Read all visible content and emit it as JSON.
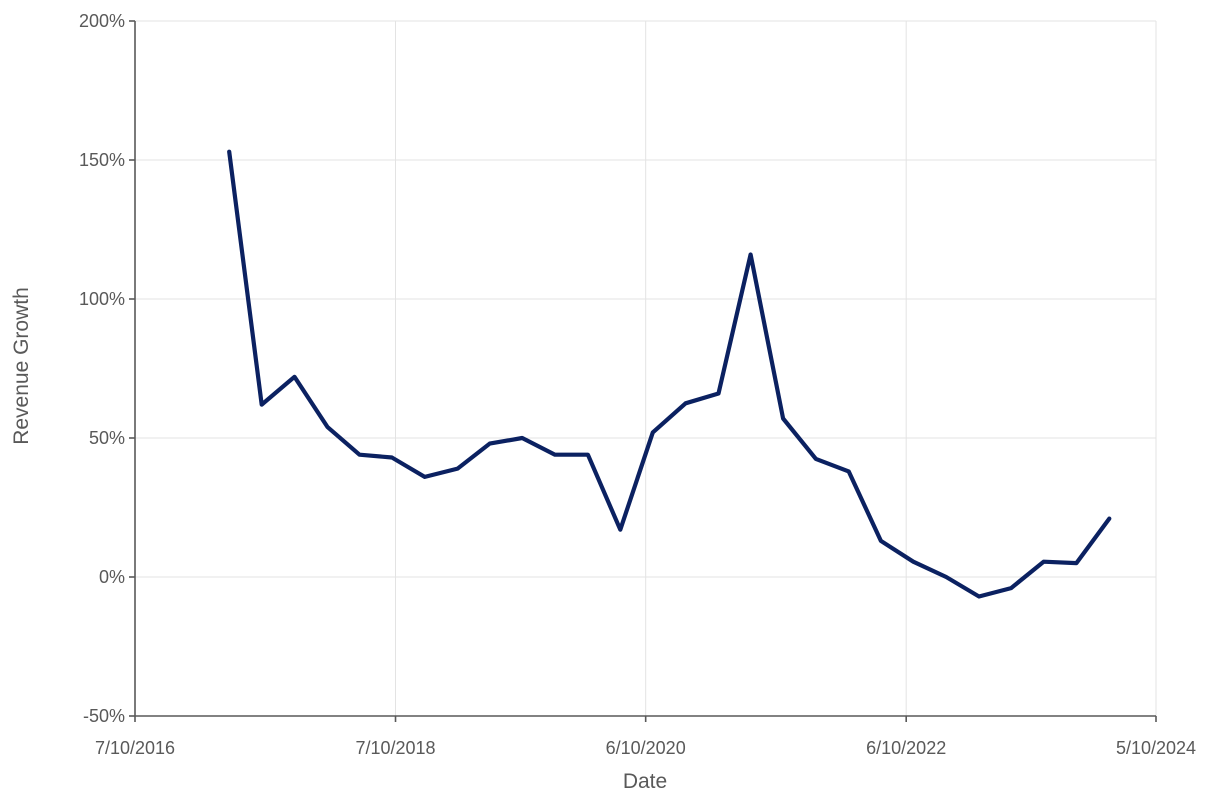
{
  "chart_data": {
    "type": "line",
    "title": "",
    "xlabel": "Date",
    "ylabel": "Revenue Growth",
    "x_ticks": [
      "7/10/2016",
      "7/10/2018",
      "6/10/2020",
      "6/10/2022",
      "5/10/2024"
    ],
    "y_ticks": [
      "200%",
      "150%",
      "100%",
      "50%",
      "0%",
      "-50%"
    ],
    "xlim": [
      "2016-07-10",
      "2024-05-10"
    ],
    "ylim": [
      -50,
      200
    ],
    "y_unit": "%",
    "grid": true,
    "legend": "none",
    "series": [
      {
        "color": "#0b2161",
        "x": [
          "2017-03-31",
          "2017-06-30",
          "2017-09-30",
          "2017-12-31",
          "2018-03-31",
          "2018-06-30",
          "2018-09-30",
          "2018-12-31",
          "2019-03-31",
          "2019-06-30",
          "2019-09-30",
          "2019-12-31",
          "2020-03-31",
          "2020-06-30",
          "2020-09-30",
          "2020-12-31",
          "2021-03-31",
          "2021-06-30",
          "2021-09-30",
          "2021-12-31",
          "2022-03-31",
          "2022-06-30",
          "2022-09-30",
          "2022-12-31",
          "2023-03-31",
          "2023-06-30",
          "2023-09-30",
          "2023-12-31"
        ],
        "values": [
          153,
          62,
          72,
          54,
          44,
          43,
          36,
          39,
          48,
          50,
          44,
          44,
          17,
          52,
          62.5,
          66,
          116,
          57,
          42.5,
          38,
          13,
          5.5,
          0,
          -7,
          -4,
          5.5,
          5,
          21
        ]
      }
    ]
  }
}
